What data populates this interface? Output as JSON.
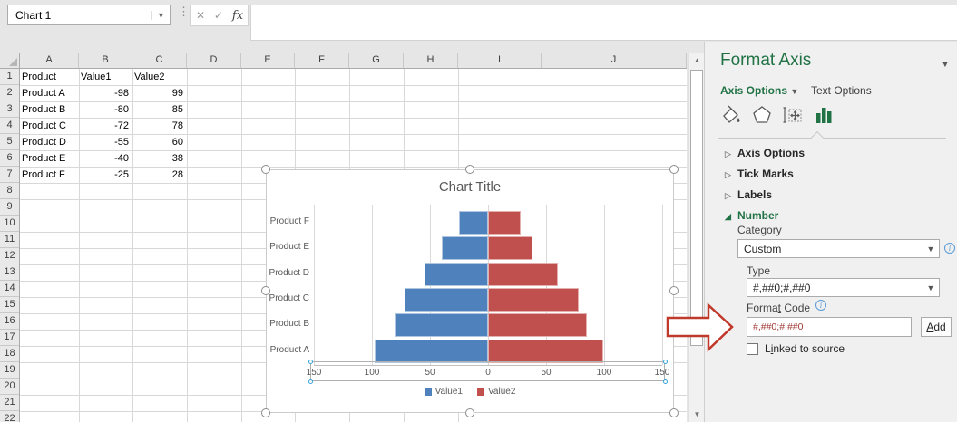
{
  "name_box": {
    "value": "Chart 1"
  },
  "formula_bar": {
    "cancel": "✕",
    "enter": "✓",
    "fx": "fx"
  },
  "grid": {
    "columns": [
      "A",
      "B",
      "C",
      "D",
      "E",
      "F",
      "G",
      "H",
      "I",
      "J"
    ],
    "row_count": 22,
    "cells": [
      [
        "Product",
        "Value1",
        "Value2"
      ],
      [
        "Product A",
        "-98",
        "99"
      ],
      [
        "Product B",
        "-80",
        "85"
      ],
      [
        "Product C",
        "-72",
        "78"
      ],
      [
        "Product D",
        "-55",
        "60"
      ],
      [
        "Product E",
        "-40",
        "38"
      ],
      [
        "Product F",
        "-25",
        "28"
      ]
    ]
  },
  "chart_data": {
    "type": "bar",
    "orientation": "horizontal-tornado",
    "title": "Chart Title",
    "categories": [
      "Product A",
      "Product B",
      "Product C",
      "Product D",
      "Product E",
      "Product F"
    ],
    "series": [
      {
        "name": "Value1",
        "color": "#4F81BD",
        "values": [
          -98,
          -80,
          -72,
          -55,
          -40,
          -25
        ]
      },
      {
        "name": "Value2",
        "color": "#C0504D",
        "values": [
          99,
          85,
          78,
          60,
          38,
          28
        ]
      }
    ],
    "x_tick_labels": [
      "150",
      "100",
      "50",
      "0",
      "50",
      "100",
      "150"
    ],
    "xlim": [
      -150,
      150
    ],
    "legend_position": "bottom",
    "gridlines": "vertical"
  },
  "panel": {
    "title": "Format Axis",
    "tab_axis_options": "Axis Options",
    "tab_text_options": "Text Options",
    "icons": [
      {
        "name": "fill-line-icon"
      },
      {
        "name": "effects-icon"
      },
      {
        "name": "size-properties-icon"
      },
      {
        "name": "axis-options-chart-icon",
        "selected": true
      }
    ],
    "sections": [
      {
        "label": "Axis Options",
        "expanded": false
      },
      {
        "label": "Tick Marks",
        "expanded": false
      },
      {
        "label": "Labels",
        "expanded": false
      },
      {
        "label": "Number",
        "expanded": true
      }
    ],
    "number": {
      "category_label": {
        "pre": "",
        "u": "C",
        "post": "ategory"
      },
      "category_value": "Custom",
      "type_label": "Type",
      "type_value": "#,##0;#,##0",
      "format_code_label": {
        "pre": "Forma",
        "u": "t",
        "post": " Code"
      },
      "format_code_value": "#,##0;#,##0",
      "add_label": {
        "pre": "",
        "u": "A",
        "post": "dd"
      },
      "linked_label": {
        "pre": "L",
        "u": "i",
        "post": "nked to source"
      }
    }
  },
  "colors": {
    "accent_green": "#217346",
    "series_blue": "#4F81BD",
    "series_red": "#C0504D",
    "arrow_red": "#C0392B"
  }
}
